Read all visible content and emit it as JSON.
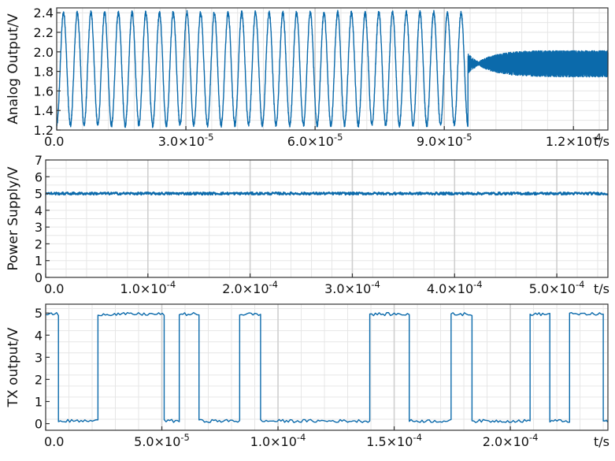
{
  "colors": {
    "series": "#0b6aab",
    "grid_minor": "#e6e6e6",
    "grid_major": "#cfcfcf",
    "axis": "#333333",
    "background": "#ffffff"
  },
  "chart_data": [
    {
      "type": "line",
      "ylabel": "Analog Output/V",
      "xlabel_text": "t/s",
      "xlim": [
        0,
        0.000128
      ],
      "ylim": [
        1.2,
        2.45
      ],
      "x_ticks": [
        0,
        3e-05,
        6e-05,
        9e-05,
        0.00012
      ],
      "x_tick_labels": [
        {
          "mantissa": "0.0",
          "exp": ""
        },
        {
          "mantissa": "3.0×10",
          "exp": "-5"
        },
        {
          "mantissa": "6.0×10",
          "exp": "-5"
        },
        {
          "mantissa": "9.0×10",
          "exp": "-5"
        },
        {
          "mantissa": "1.2×10",
          "exp": "-4"
        }
      ],
      "y_ticks": [
        1.2,
        1.4,
        1.6,
        1.8,
        2.0,
        2.2,
        2.4
      ],
      "y_tick_labels": [
        "1.2",
        "1.4",
        "1.6",
        "1.8",
        "2.0",
        "2.2",
        "2.4"
      ],
      "grid": true,
      "series": [
        {
          "kind": "sine_then_noise",
          "sine_end": 9.55e-05,
          "periods": 30,
          "amplitude_high": 2.4,
          "amplitude_low": 1.25,
          "transient_peak": 1.6,
          "settle_level": 1.88,
          "noise_band": [
            1.75,
            2.01
          ]
        }
      ]
    },
    {
      "type": "line",
      "ylabel": "Power Supply/V",
      "xlabel_text": "t/s",
      "xlim": [
        0,
        0.00055
      ],
      "ylim": [
        0,
        7
      ],
      "x_ticks": [
        0,
        0.0001,
        0.0002,
        0.0003,
        0.0004,
        0.0005
      ],
      "x_tick_labels": [
        {
          "mantissa": "0.0",
          "exp": ""
        },
        {
          "mantissa": "1.0×10",
          "exp": "-4"
        },
        {
          "mantissa": "2.0×10",
          "exp": "-4"
        },
        {
          "mantissa": "3.0×10",
          "exp": "-4"
        },
        {
          "mantissa": "4.0×10",
          "exp": "-4"
        },
        {
          "mantissa": "5.0×10",
          "exp": "-4"
        }
      ],
      "y_ticks": [
        0,
        1,
        2,
        3,
        4,
        5,
        6,
        7
      ],
      "y_tick_labels": [
        "0",
        "1",
        "2",
        "3",
        "4",
        "5",
        "6",
        "7"
      ],
      "grid": true,
      "series": [
        {
          "kind": "constant_noise",
          "level": 5.0,
          "noise": 0.07
        }
      ]
    },
    {
      "type": "line",
      "ylabel": "TX output/V",
      "xlabel_text": "t/s",
      "xlim": [
        0,
        0.000242
      ],
      "ylim": [
        -0.3,
        5.4
      ],
      "x_ticks": [
        0,
        5e-05,
        0.0001,
        0.00015,
        0.0002
      ],
      "x_tick_labels": [
        {
          "mantissa": "0.0",
          "exp": ""
        },
        {
          "mantissa": "5.0×10",
          "exp": "-5"
        },
        {
          "mantissa": "1.0×10",
          "exp": "-4"
        },
        {
          "mantissa": "1.5×10",
          "exp": "-4"
        },
        {
          "mantissa": "2.0×10",
          "exp": "-4"
        }
      ],
      "y_ticks": [
        0,
        1,
        2,
        3,
        4,
        5
      ],
      "y_tick_labels": [
        "0",
        "1",
        "2",
        "3",
        "4",
        "5"
      ],
      "grid": true,
      "series": [
        {
          "kind": "digital",
          "low": 0.12,
          "high": 4.95,
          "transitions": [
            [
              0,
              4.95
            ],
            [
              5.5e-06,
              0.12
            ],
            [
              2.25e-05,
              4.95
            ],
            [
              5.1e-05,
              0.12
            ],
            [
              5.75e-05,
              4.95
            ],
            [
              6.6e-05,
              0.12
            ],
            [
              8.35e-05,
              4.95
            ],
            [
              9.25e-05,
              0.12
            ],
            [
              0.0001395,
              4.95
            ],
            [
              0.0001565,
              0.12
            ],
            [
              0.0001745,
              4.95
            ],
            [
              0.0001835,
              0.12
            ],
            [
              0.0002085,
              4.95
            ],
            [
              0.000217,
              0.12
            ],
            [
              0.0002255,
              4.95
            ],
            [
              0.00024,
              0.12
            ]
          ],
          "end": 0.000242
        }
      ]
    }
  ]
}
